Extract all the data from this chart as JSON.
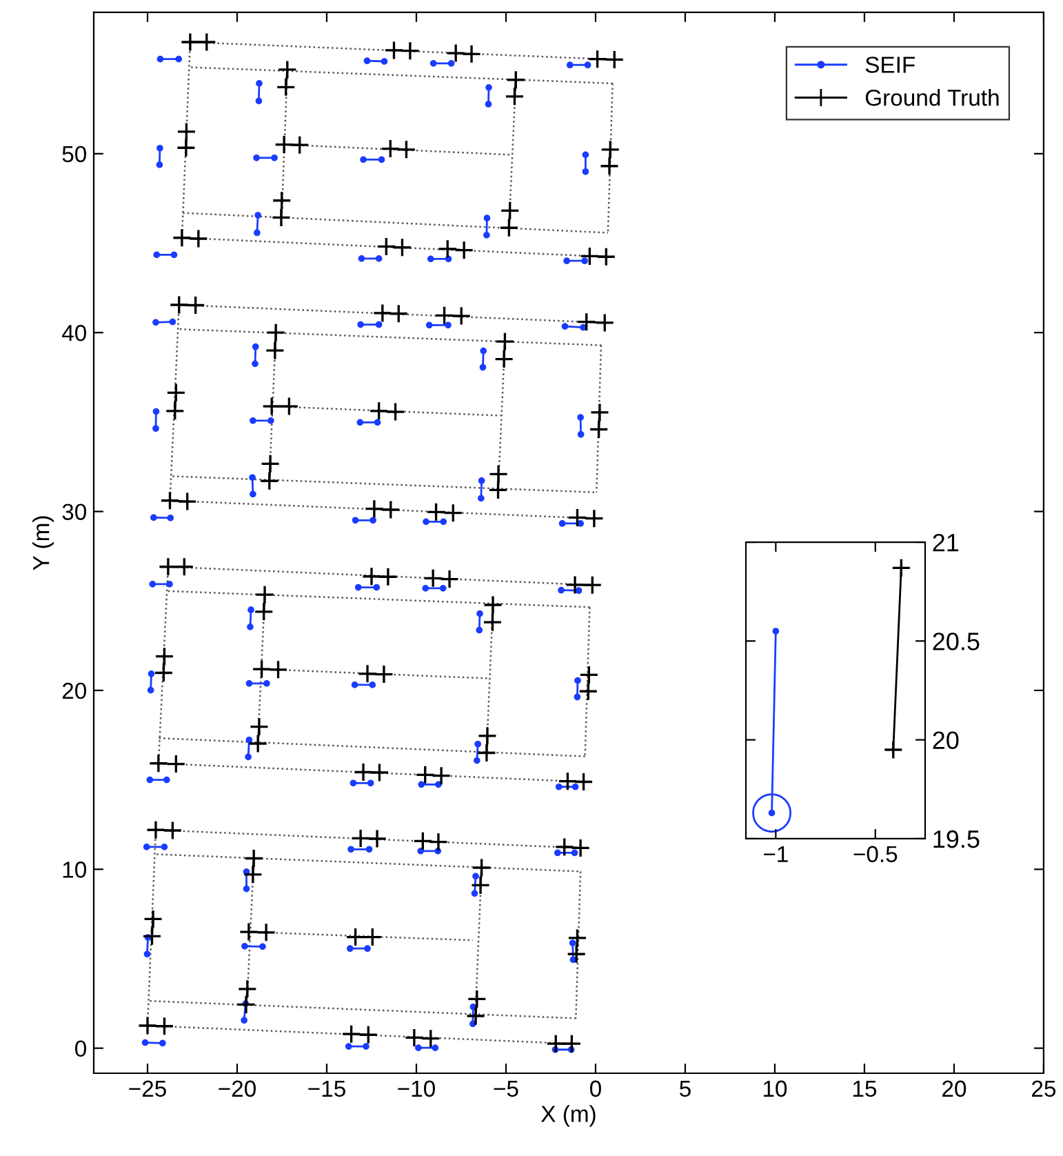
{
  "chart_data": [
    {
      "type": "line",
      "xlabel": "X (m)",
      "ylabel": "Y (m)",
      "xlim": [
        -28,
        25
      ],
      "xticks": [
        -25,
        -20,
        -15,
        -10,
        -5,
        0,
        5,
        10,
        15,
        20,
        25
      ],
      "ylim": [
        -1.4,
        57.9
      ],
      "yticks": [
        0,
        10,
        20,
        30,
        40,
        50
      ],
      "grid": false,
      "legend": "top right",
      "series": [
        {
          "line_style": "dotted",
          "marker": "none",
          "color": "#555555",
          "x": [
            -22.62,
            1.05,
            null,
            -22.57,
            0.95,
            null,
            -17.38,
            -4.68,
            null,
            -23.03,
            0.69,
            null,
            -23.08,
            0.59,
            null,
            -22.62,
            -23.08,
            null,
            -17.2,
            -17.51,
            null,
            -4.45,
            -4.83,
            null,
            0.95,
            0.69,
            null,
            -23.24,
            0.51,
            null,
            -23.2,
            0.31,
            null,
            -18.07,
            -5.31,
            null,
            -23.6,
            0.05,
            null,
            -23.75,
            -0.08,
            null,
            -23.24,
            -23.75,
            null,
            -17.84,
            -18.2,
            null,
            -5.06,
            -5.44,
            null,
            0.31,
            0.05,
            null,
            -23.85,
            -0.18,
            null,
            -23.85,
            -0.33,
            null,
            -18.63,
            -5.96,
            null,
            -24.36,
            -0.59,
            null,
            -24.39,
            -0.67,
            null,
            -23.85,
            -24.39,
            null,
            -18.46,
            -18.84,
            null,
            -5.73,
            -6.08,
            null,
            -0.33,
            -0.59,
            null,
            -24.54,
            -0.84,
            null,
            -24.49,
            -0.84,
            null,
            -19.35,
            -6.85,
            null,
            -24.87,
            -1.1,
            null,
            -25.0,
            -1.33,
            null,
            -24.54,
            -25.0,
            null,
            -19.07,
            -19.43,
            null,
            -6.36,
            -6.69,
            null,
            -0.84,
            -1.1
          ],
          "values": [
            56.24,
            55.26,
            null,
            54.83,
            53.93,
            null,
            50.51,
            49.94,
            null,
            46.69,
            45.58,
            null,
            45.3,
            44.24,
            null,
            56.24,
            45.3,
            null,
            54.7,
            46.61,
            null,
            54.13,
            46.0,
            null,
            53.93,
            45.58,
            null,
            41.55,
            40.55,
            null,
            40.19,
            39.29,
            null,
            35.88,
            35.36,
            null,
            31.97,
            31.07,
            null,
            30.61,
            29.61,
            null,
            41.55,
            30.61,
            null,
            40.0,
            31.8,
            null,
            39.5,
            31.1,
            null,
            39.29,
            31.07,
            null,
            26.91,
            25.89,
            null,
            25.55,
            24.65,
            null,
            21.19,
            20.67,
            null,
            17.33,
            16.31,
            null,
            15.92,
            14.89,
            null,
            26.91,
            15.92,
            null,
            25.35,
            17.1,
            null,
            24.78,
            16.6,
            null,
            24.65,
            16.31,
            null,
            12.2,
            11.19,
            null,
            10.84,
            9.88,
            null,
            6.5,
            6.03,
            null,
            2.64,
            1.67,
            null,
            1.26,
            0.25,
            null,
            12.2,
            1.26,
            null,
            10.61,
            2.9,
            null,
            10.09,
            2.3,
            null,
            9.88,
            1.67
          ]
        },
        {
          "name": "SEIF",
          "color": "#1a3cff",
          "marker": "circle",
          "line_style": "solid",
          "x": [
            -24.29,
            -23.26,
            null,
            -18.77,
            -18.79,
            null,
            -24.31,
            -24.33,
            null,
            -18.92,
            -17.92,
            null,
            -18.84,
            -18.89,
            null,
            -24.49,
            -23.52,
            null,
            -12.75,
            -11.79,
            null,
            -9.05,
            -8.05,
            null,
            -1.43,
            -0.44,
            null,
            -5.96,
            -5.98,
            null,
            -0.56,
            -0.56,
            null,
            -12.96,
            -11.94,
            null,
            -6.06,
            -6.08,
            null,
            -13.06,
            -12.09,
            null,
            -9.2,
            -8.21,
            null,
            -1.61,
            -0.61,
            null,
            -24.54,
            -23.6,
            null,
            -18.97,
            -19.0,
            null,
            -24.52,
            -24.54,
            null,
            -19.12,
            -18.12,
            null,
            -19.15,
            -19.12,
            null,
            -24.66,
            -23.72,
            null,
            -13.11,
            -12.09,
            null,
            -9.28,
            -8.23,
            null,
            -1.71,
            -0.69,
            null,
            -6.26,
            -6.29,
            null,
            -0.84,
            -0.82,
            null,
            -13.14,
            -12.17,
            null,
            -6.36,
            -6.39,
            null,
            -13.4,
            -12.42,
            null,
            -9.46,
            -8.49,
            null,
            -1.86,
            -0.84,
            null,
            -24.72,
            -23.77,
            null,
            -19.23,
            -19.27,
            null,
            -24.79,
            -24.82,
            null,
            -19.33,
            -18.35,
            null,
            -19.33,
            -19.38,
            null,
            -24.87,
            -23.93,
            null,
            -13.24,
            -12.22,
            null,
            -9.49,
            -8.51,
            null,
            -1.92,
            -0.94,
            null,
            -6.46,
            -6.49,
            null,
            -1.0,
            -1.02,
            null,
            -13.44,
            -12.45,
            null,
            -6.57,
            -6.62,
            null,
            -13.52,
            -12.55,
            null,
            -9.72,
            -8.77,
            null,
            -2.05,
            -1.13,
            null,
            -25.05,
            -24.06,
            null,
            -19.48,
            -19.48,
            null,
            -24.98,
            -25.02,
            null,
            -19.58,
            -18.58,
            null,
            -19.53,
            -19.61,
            null,
            -25.13,
            -24.16,
            null,
            -13.65,
            -12.63,
            null,
            -9.76,
            -8.8,
            null,
            -2.12,
            -1.17,
            null,
            -6.69,
            -6.75,
            null,
            -1.28,
            -1.25,
            null,
            -13.7,
            -12.73,
            null,
            -6.83,
            -6.85,
            null,
            -13.78,
            -12.81,
            null,
            -9.89,
            -8.95,
            null,
            -2.25,
            -1.36
          ],
          "values": [
            55.29,
            55.29,
            null,
            53.93,
            52.95,
            null,
            50.31,
            49.38,
            null,
            49.77,
            49.77,
            null,
            46.56,
            45.58,
            null,
            44.35,
            44.35,
            null,
            55.19,
            55.16,
            null,
            55.05,
            55.05,
            null,
            54.96,
            54.96,
            null,
            53.7,
            52.77,
            null,
            49.94,
            49.0,
            null,
            49.67,
            49.67,
            null,
            46.4,
            45.45,
            null,
            44.14,
            44.14,
            null,
            44.12,
            44.12,
            null,
            44.01,
            44.01,
            null,
            40.57,
            40.6,
            null,
            39.21,
            38.26,
            null,
            35.59,
            34.64,
            null,
            35.08,
            35.08,
            null,
            31.9,
            30.97,
            null,
            29.66,
            29.64,
            null,
            40.45,
            40.45,
            null,
            40.42,
            40.42,
            null,
            40.35,
            40.29,
            null,
            38.98,
            38.06,
            null,
            35.26,
            34.31,
            null,
            34.98,
            34.98,
            null,
            31.72,
            30.74,
            null,
            29.51,
            29.51,
            null,
            29.43,
            29.43,
            null,
            29.33,
            29.33,
            null,
            25.94,
            25.94,
            null,
            24.5,
            23.55,
            null,
            20.93,
            20.01,
            null,
            20.39,
            20.39,
            null,
            17.23,
            16.28,
            null,
            15.0,
            15.0,
            null,
            25.76,
            25.76,
            null,
            25.71,
            25.71,
            null,
            25.6,
            25.58,
            null,
            24.29,
            23.37,
            null,
            20.55,
            19.63,
            null,
            20.31,
            20.31,
            null,
            17.0,
            16.08,
            null,
            14.82,
            14.82,
            null,
            14.74,
            14.74,
            null,
            14.61,
            14.61,
            null,
            11.25,
            11.25,
            null,
            9.86,
            8.91,
            null,
            6.19,
            5.26,
            null,
            5.7,
            5.68,
            null,
            2.49,
            1.56,
            null,
            0.31,
            0.28,
            null,
            11.12,
            11.12,
            null,
            11.02,
            11.02,
            null,
            10.92,
            10.92,
            null,
            9.61,
            8.65,
            null,
            5.88,
            4.95,
            null,
            5.57,
            5.57,
            null,
            2.31,
            1.36,
            null,
            0.1,
            0.1,
            null,
            0.02,
            0.02,
            null,
            -0.08,
            -0.08
          ]
        },
        {
          "name": "Ground Truth",
          "color": "#000000",
          "marker": "cross",
          "line_style": "solid",
          "x": [
            -22.62,
            -21.7,
            null,
            -17.2,
            -17.28,
            null,
            -22.83,
            -22.85,
            null,
            -17.38,
            -16.51,
            null,
            -17.51,
            -17.54,
            null,
            -23.08,
            -22.16,
            null,
            -11.25,
            -10.35,
            null,
            -7.8,
            -6.92,
            null,
            0.1,
            1.05,
            null,
            -4.45,
            -4.52,
            null,
            0.82,
            0.77,
            null,
            -11.45,
            -10.56,
            null,
            -4.78,
            -4.83,
            null,
            -11.68,
            -10.79,
            null,
            -8.26,
            -7.34,
            null,
            -0.33,
            0.59,
            null,
            -23.24,
            -22.32,
            null,
            -17.84,
            -17.89,
            null,
            -23.41,
            -23.47,
            null,
            -18.07,
            -17.1,
            null,
            -18.15,
            -18.2,
            null,
            -23.75,
            -22.78,
            null,
            -11.89,
            -10.99,
            null,
            -8.44,
            -7.49,
            null,
            -0.51,
            0.51,
            null,
            -5.06,
            -5.11,
            null,
            0.23,
            0.18,
            null,
            -12.09,
            -11.17,
            null,
            -5.42,
            -5.44,
            null,
            -12.35,
            -11.43,
            null,
            -8.9,
            -7.95,
            null,
            -1.02,
            -0.08,
            null,
            -23.85,
            -22.95,
            null,
            -18.46,
            -18.51,
            null,
            -24.06,
            -24.1,
            null,
            -18.63,
            -17.71,
            null,
            -18.77,
            -18.84,
            null,
            -24.39,
            -23.41,
            null,
            -12.5,
            -11.58,
            null,
            -9.07,
            -8.15,
            null,
            -1.15,
            -0.18,
            null,
            -5.73,
            -5.75,
            null,
            -0.37,
            -0.41,
            null,
            -12.73,
            -11.81,
            null,
            -6.04,
            -6.08,
            null,
            -12.96,
            -12.06,
            null,
            -9.51,
            -8.61,
            null,
            -1.56,
            -0.67,
            null,
            -24.54,
            -23.6,
            null,
            -19.07,
            -19.12,
            null,
            -24.69,
            -24.75,
            null,
            -19.35,
            -18.38,
            null,
            -19.43,
            -19.5,
            null,
            -25.0,
            -24.06,
            null,
            -13.11,
            -12.19,
            null,
            -9.64,
            -8.77,
            null,
            -1.74,
            -0.84,
            null,
            -6.36,
            -6.42,
            null,
            -1.02,
            -1.07,
            null,
            -13.4,
            -12.45,
            null,
            -6.62,
            -6.69,
            null,
            -13.63,
            -12.68,
            null,
            -10.12,
            -9.2,
            null,
            -2.22,
            -1.33
          ],
          "values": [
            56.24,
            56.24,
            null,
            54.7,
            53.72,
            null,
            51.23,
            50.33,
            null,
            50.51,
            50.49,
            null,
            47.38,
            46.43,
            null,
            45.3,
            45.25,
            null,
            55.78,
            55.75,
            null,
            55.62,
            55.57,
            null,
            55.29,
            55.26,
            null,
            54.13,
            53.2,
            null,
            50.23,
            49.31,
            null,
            50.28,
            50.23,
            null,
            46.82,
            45.86,
            null,
            44.81,
            44.76,
            null,
            44.68,
            44.61,
            null,
            44.27,
            44.24,
            null,
            41.55,
            41.53,
            null,
            40.0,
            39.0,
            null,
            36.64,
            35.62,
            null,
            35.88,
            35.88,
            null,
            32.67,
            31.71,
            null,
            30.61,
            30.56,
            null,
            41.09,
            41.06,
            null,
            40.96,
            40.93,
            null,
            40.6,
            40.55,
            null,
            39.5,
            38.52,
            null,
            35.54,
            34.59,
            null,
            35.62,
            35.57,
            null,
            32.09,
            31.2,
            null,
            30.15,
            30.1,
            null,
            29.97,
            29.92,
            null,
            29.66,
            29.61,
            null,
            26.91,
            26.91,
            null,
            25.35,
            24.4,
            null,
            21.9,
            20.98,
            null,
            21.19,
            21.16,
            null,
            17.97,
            17.03,
            null,
            15.92,
            15.89,
            null,
            26.37,
            26.35,
            null,
            26.27,
            26.22,
            null,
            25.9,
            25.89,
            null,
            24.78,
            23.81,
            null,
            20.87,
            19.95,
            null,
            20.93,
            20.9,
            null,
            17.46,
            16.51,
            null,
            15.43,
            15.41,
            null,
            15.28,
            15.23,
            null,
            14.92,
            14.89,
            null,
            12.2,
            12.17,
            null,
            10.61,
            9.71,
            null,
            7.22,
            6.26,
            null,
            6.5,
            6.47,
            null,
            3.31,
            2.44,
            null,
            1.26,
            1.23,
            null,
            11.73,
            11.71,
            null,
            11.58,
            11.53,
            null,
            11.25,
            11.19,
            null,
            10.09,
            9.11,
            null,
            6.16,
            5.26,
            null,
            6.21,
            6.21,
            null,
            2.75,
            1.8,
            null,
            0.79,
            0.75,
            null,
            0.59,
            0.54,
            null,
            0.25,
            0.25
          ]
        }
      ]
    },
    {
      "type": "line",
      "xlim": [
        -1.15,
        -0.25
      ],
      "xticks": [
        -1,
        -0.5
      ],
      "ylim": [
        19.5,
        21
      ],
      "yticks": [
        19.5,
        20,
        20.5,
        21
      ],
      "grid": false,
      "series": [
        {
          "color": "#1a3cff",
          "marker": "circle",
          "line_style": "solid",
          "x": [
            -1.0,
            -1.02
          ],
          "values": [
            20.55,
            19.63
          ]
        },
        {
          "type": "scatter",
          "color": "#1a3cff",
          "marker": "circle",
          "x": [
            -1.02
          ],
          "values": [
            19.63
          ]
        },
        {
          "color": "#000000",
          "marker": "cross",
          "line_style": "solid",
          "x": [
            -0.37,
            -0.41
          ],
          "values": [
            20.87,
            19.95
          ]
        }
      ]
    }
  ]
}
